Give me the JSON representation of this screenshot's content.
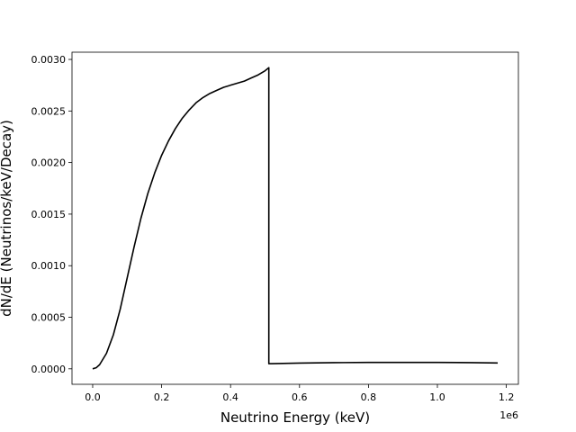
{
  "chart_data": {
    "type": "line",
    "title": "",
    "xlabel": "Neutrino Energy (keV)",
    "ylabel": "dN/dE (Neutrinos/keV/Decay)",
    "x_offset_label": "1e6",
    "xlim": [
      -60000,
      1235000
    ],
    "ylim": [
      -0.00015,
      0.00307
    ],
    "grid": false,
    "x_ticks": [
      {
        "value": 0.0,
        "label": "0.0"
      },
      {
        "value": 200000,
        "label": "0.2"
      },
      {
        "value": 400000,
        "label": "0.4"
      },
      {
        "value": 600000,
        "label": "0.6"
      },
      {
        "value": 800000,
        "label": "0.8"
      },
      {
        "value": 1000000,
        "label": "1.0"
      },
      {
        "value": 1200000,
        "label": "1.2"
      }
    ],
    "y_ticks": [
      {
        "value": 0.0,
        "label": "0.0000"
      },
      {
        "value": 0.0005,
        "label": "0.0005"
      },
      {
        "value": 0.001,
        "label": "0.0010"
      },
      {
        "value": 0.0015,
        "label": "0.0015"
      },
      {
        "value": 0.002,
        "label": "0.0020"
      },
      {
        "value": 0.0025,
        "label": "0.0025"
      },
      {
        "value": 0.003,
        "label": "0.0030"
      }
    ],
    "series": [
      {
        "color": "#000000",
        "x": [
          0,
          10000,
          20000,
          40000,
          60000,
          80000,
          100000,
          120000,
          140000,
          160000,
          180000,
          200000,
          220000,
          240000,
          260000,
          280000,
          300000,
          320000,
          340000,
          360000,
          380000,
          400000,
          420000,
          440000,
          460000,
          480000,
          500000,
          511000,
          511001,
          520000,
          600000,
          700000,
          800000,
          900000,
          1000000,
          1100000,
          1175000
        ],
        "y": [
          0.0,
          1e-05,
          4e-05,
          0.00015,
          0.00033,
          0.00058,
          0.00088,
          0.00118,
          0.00146,
          0.0017,
          0.0019,
          0.00207,
          0.00221,
          0.00233,
          0.00243,
          0.00251,
          0.00258,
          0.00263,
          0.00267,
          0.0027,
          0.00273,
          0.00275,
          0.00277,
          0.00279,
          0.00282,
          0.00285,
          0.00289,
          0.00292,
          5e-05,
          5e-05,
          5.6e-05,
          6e-05,
          6.2e-05,
          6.2e-05,
          6.2e-05,
          6e-05,
          5.7e-05
        ]
      }
    ]
  }
}
